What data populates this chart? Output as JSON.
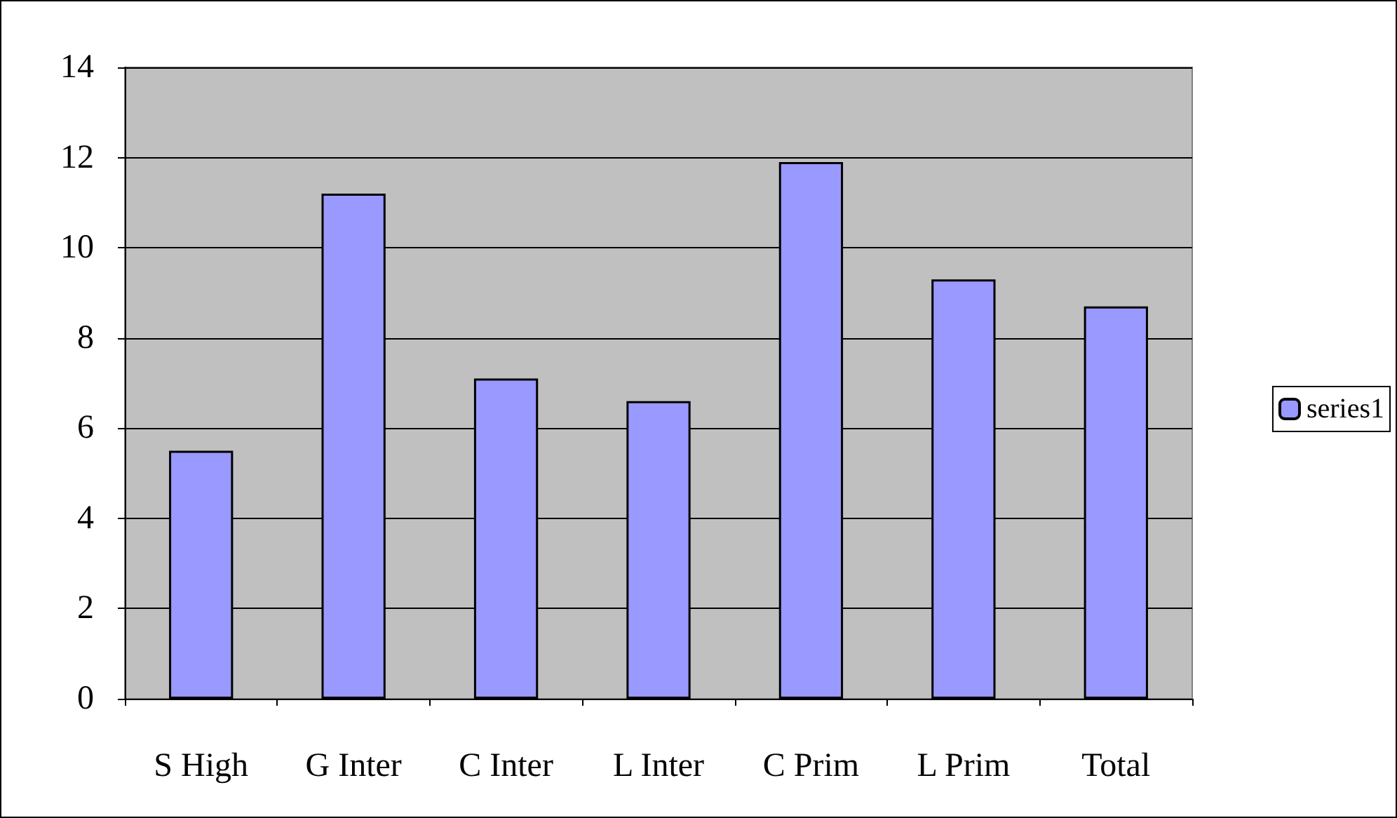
{
  "chart_data": {
    "type": "bar",
    "categories": [
      "S High",
      "G Inter",
      "C Inter",
      "L Inter",
      "C Prim",
      "L Prim",
      "Total"
    ],
    "series": [
      {
        "name": "series1",
        "color": "#9999ff",
        "values": [
          5.5,
          11.2,
          7.1,
          6.6,
          11.9,
          9.3,
          8.7
        ]
      }
    ],
    "ylim": [
      0,
      14
    ],
    "yticks": [
      0,
      2,
      4,
      6,
      8,
      10,
      12,
      14
    ],
    "grid": "y",
    "legend": "right"
  }
}
